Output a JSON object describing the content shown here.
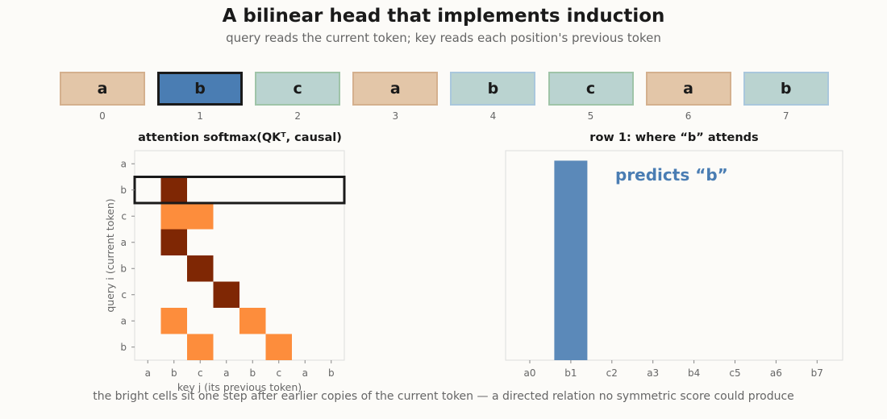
{
  "header": {
    "title": "A bilinear head that implements induction",
    "subtitle": "query reads the current token; key reads each position's previous token"
  },
  "tokens": [
    {
      "label": "a",
      "index": "0",
      "color": "#e3c6a8",
      "border": "#d4b08e",
      "selected": false
    },
    {
      "label": "b",
      "index": "1",
      "color": "#4a7db3",
      "border": "#1a1a1a",
      "selected": true
    },
    {
      "label": "c",
      "index": "2",
      "color": "#bad3d0",
      "border": "#9fc4a8",
      "selected": false
    },
    {
      "label": "a",
      "index": "3",
      "color": "#e3c6a8",
      "border": "#d4b08e",
      "selected": false
    },
    {
      "label": "b",
      "index": "4",
      "color": "#bad3d0",
      "border": "#a9c7dc",
      "selected": false
    },
    {
      "label": "c",
      "index": "5",
      "color": "#bad3d0",
      "border": "#9fc4a8",
      "selected": false
    },
    {
      "label": "a",
      "index": "6",
      "color": "#e3c6a8",
      "border": "#d4b08e",
      "selected": false
    },
    {
      "label": "b",
      "index": "7",
      "color": "#bad3d0",
      "border": "#a9c7dc",
      "selected": false
    }
  ],
  "chart_data": [
    {
      "type": "heatmap",
      "title": "attention  softmax(QKᵀ, causal)",
      "xlabel": "key j  (its previous token)",
      "ylabel": "query i  (current token)",
      "x_ticks": [
        "a",
        "b",
        "c",
        "a",
        "b",
        "c",
        "a",
        "b"
      ],
      "y_ticks": [
        "a",
        "b",
        "c",
        "a",
        "b",
        "c",
        "a",
        "b"
      ],
      "highlight_row": 1,
      "colors": {
        "high": "#7f2704",
        "mid": "#fd8d3c",
        "low": "#fcfbf8",
        "highlight": "#1a1a1a"
      },
      "values": [
        [
          0,
          0,
          0,
          0,
          0,
          0,
          0,
          0
        ],
        [
          0,
          1,
          0,
          0,
          0,
          0,
          0,
          0
        ],
        [
          0,
          0.5,
          0.5,
          0,
          0,
          0,
          0,
          0
        ],
        [
          0,
          1,
          0,
          0,
          0,
          0,
          0,
          0
        ],
        [
          0,
          0,
          1,
          0,
          0,
          0,
          0,
          0
        ],
        [
          0,
          0,
          0,
          1,
          0,
          0,
          0,
          0
        ],
        [
          0,
          0.5,
          0,
          0,
          0.5,
          0,
          0,
          0
        ],
        [
          0,
          0,
          0.5,
          0,
          0,
          0.5,
          0,
          0
        ]
      ]
    },
    {
      "type": "bar",
      "title": "row 1: where “b” attends",
      "categories": [
        "a0",
        "b1",
        "c2",
        "a3",
        "b4",
        "c5",
        "a6",
        "b7"
      ],
      "values": [
        0,
        1,
        0,
        0,
        0,
        0,
        0,
        0
      ],
      "ylim": [
        0,
        1.05
      ],
      "bar_color": "#5b89b9",
      "annotation": "predicts “b”",
      "annotation_color": "#4a7db3"
    }
  ],
  "footer": "the bright cells sit one step after earlier copies of the current token — a directed relation no symmetric score could produce"
}
